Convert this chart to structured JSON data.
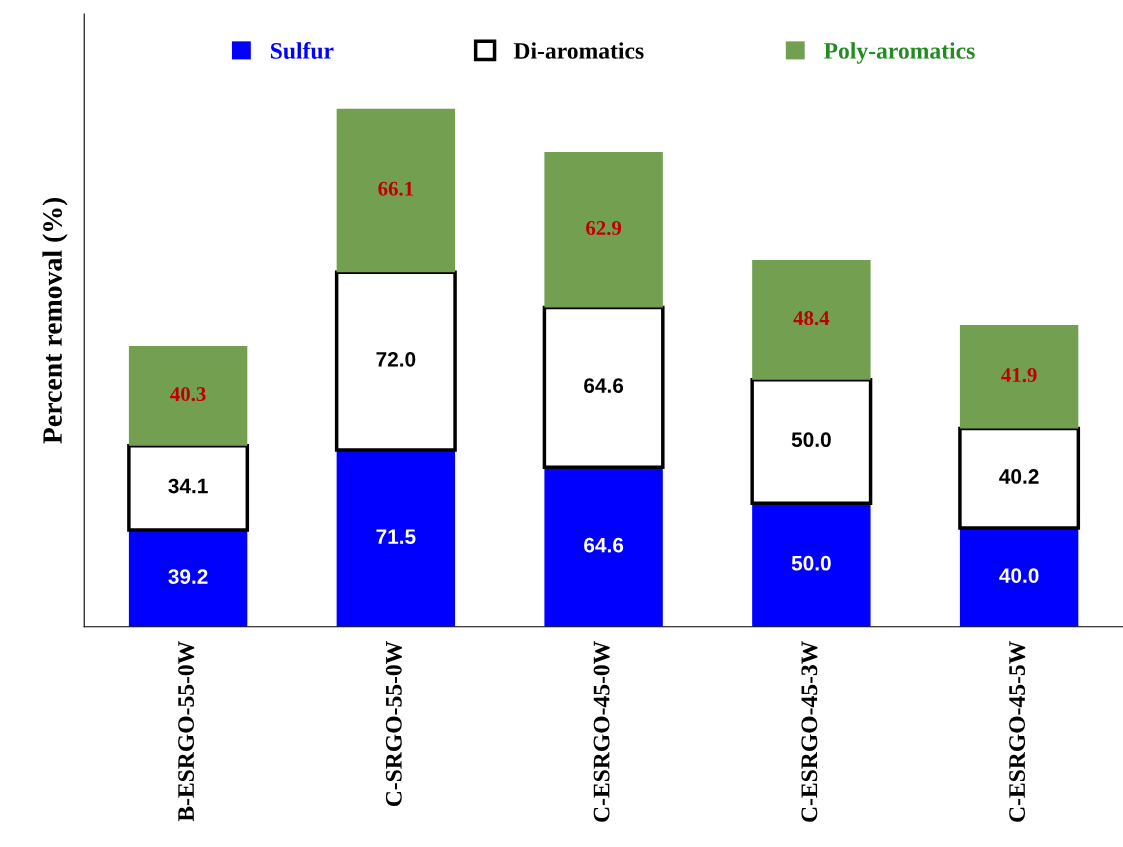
{
  "chart_data": {
    "type": "bar",
    "stacked": true,
    "ylabel": "Percent removal (%)",
    "categories": [
      "B-ESRGO-55-0W",
      "C-SRGO-55-0W",
      "C-ESRGO-45-0W",
      "C-ESRGO-45-3W",
      "C-ESRGO-45-5W"
    ],
    "series": [
      {
        "name": "Sulfur",
        "color": "#0000ff",
        "values": [
          39.2,
          71.5,
          64.6,
          50.0,
          40.0
        ],
        "value_labels": [
          "39.2",
          "71.5",
          "64.6",
          "50.0",
          "40.0"
        ]
      },
      {
        "name": "Di-aromatics",
        "color": "#ffffff",
        "values": [
          34.1,
          72.0,
          64.6,
          50.0,
          40.2
        ],
        "value_labels": [
          "34.1",
          "72.0",
          "64.6",
          "50.0",
          "40.2"
        ]
      },
      {
        "name": "Poly-aromatics",
        "color": "#72a050",
        "values": [
          40.3,
          66.1,
          62.9,
          48.4,
          41.9
        ],
        "value_labels": [
          "40.3",
          "66.1",
          "62.9",
          "48.4",
          "41.9"
        ]
      }
    ],
    "ylim": [
      0,
      248
    ],
    "legend": "top",
    "grid": false
  }
}
